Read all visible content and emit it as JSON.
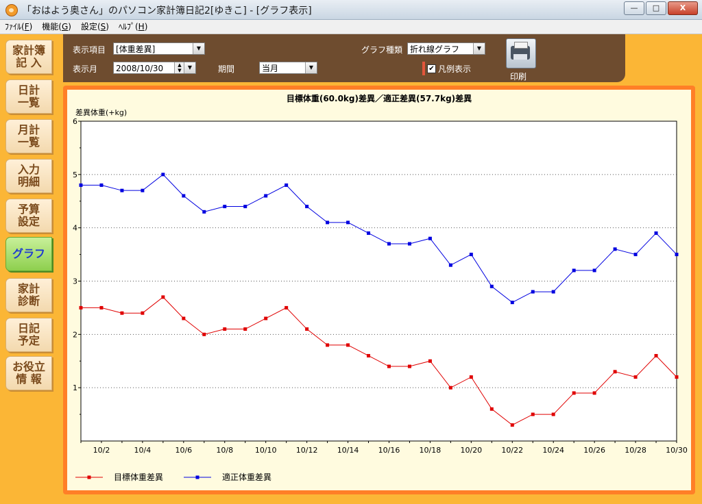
{
  "window": {
    "title": "「おはよう奥さん」のパソコン家計簿日記2[ゆきこ] - [グラフ表示]",
    "buttons": {
      "minimize": "—",
      "maximize": "□",
      "close": "X"
    }
  },
  "menu": [
    {
      "label": "ﾌｧｲﾙ(",
      "key": "F",
      "tail": ")"
    },
    {
      "label": "機能(",
      "key": "G",
      "tail": ")"
    },
    {
      "label": "設定(",
      "key": "S",
      "tail": ")"
    },
    {
      "label": "ﾍﾙﾌﾟ(",
      "key": "H",
      "tail": ")"
    }
  ],
  "sidebar": {
    "items": [
      {
        "line1": "家計簿",
        "line2": "記 入"
      },
      {
        "line1": "日計",
        "line2": "一覧"
      },
      {
        "line1": "月計",
        "line2": "一覧"
      },
      {
        "line1": "入力",
        "line2": "明細"
      },
      {
        "line1": "予算",
        "line2": "設定"
      },
      {
        "line1": "グラフ",
        "line2": ""
      },
      {
        "line1": "家計",
        "line2": "診断"
      },
      {
        "line1": "日記",
        "line2": "予定"
      },
      {
        "line1": "お役立",
        "line2": "情 報"
      }
    ],
    "active_index": 5
  },
  "toolbar": {
    "item_label": "表示項目",
    "item_value": "[体重差異]",
    "month_label": "表示月",
    "month_value": "2008/10/30",
    "period_label": "期間",
    "period_value": "当月",
    "type_label": "グラフ種類",
    "type_value": "折れ線グラフ",
    "legend_check_label": "凡例表示",
    "legend_checked": "✔",
    "print_label": "印刷"
  },
  "chart_data": {
    "type": "line",
    "title": "目標体重(60.0kg)差異／適正差異(57.7kg)差異",
    "ylabel": "差異体重(+kg)",
    "xlabel": "",
    "ylim": [
      0,
      6
    ],
    "yticks": [
      "1",
      "2",
      "3",
      "4",
      "5",
      "6"
    ],
    "x": [
      "10/1",
      "10/2",
      "10/3",
      "10/4",
      "10/5",
      "10/6",
      "10/7",
      "10/8",
      "10/9",
      "10/10",
      "10/11",
      "10/12",
      "10/13",
      "10/14",
      "10/15",
      "10/16",
      "10/17",
      "10/18",
      "10/19",
      "10/20",
      "10/21",
      "10/22",
      "10/23",
      "10/24",
      "10/25",
      "10/26",
      "10/27",
      "10/28",
      "10/29",
      "10/30"
    ],
    "xtick_labels": [
      "10/2",
      "10/4",
      "10/6",
      "10/8",
      "10/10",
      "10/12",
      "10/14",
      "10/16",
      "10/18",
      "10/20",
      "10/22",
      "10/24",
      "10/26",
      "10/28",
      "10/30"
    ],
    "grid": "horizontal dotted",
    "legend_position": "bottom-left",
    "series": [
      {
        "name": "目標体重差異",
        "color": "#e00000",
        "values": [
          2.5,
          2.5,
          2.4,
          2.4,
          2.7,
          2.3,
          2.0,
          2.1,
          2.1,
          2.3,
          2.5,
          2.1,
          1.8,
          1.8,
          1.6,
          1.4,
          1.4,
          1.5,
          1.0,
          1.2,
          0.6,
          0.3,
          0.5,
          0.5,
          0.9,
          0.9,
          1.3,
          1.2,
          1.6,
          1.2
        ]
      },
      {
        "name": "適正体重差異",
        "color": "#0000e0",
        "values": [
          4.8,
          4.8,
          4.7,
          4.7,
          5.0,
          4.6,
          4.3,
          4.4,
          4.4,
          4.6,
          4.8,
          4.4,
          4.1,
          4.1,
          3.9,
          3.7,
          3.7,
          3.8,
          3.3,
          3.5,
          2.9,
          2.6,
          2.8,
          2.8,
          3.2,
          3.2,
          3.6,
          3.5,
          3.9,
          3.5
        ]
      }
    ]
  }
}
